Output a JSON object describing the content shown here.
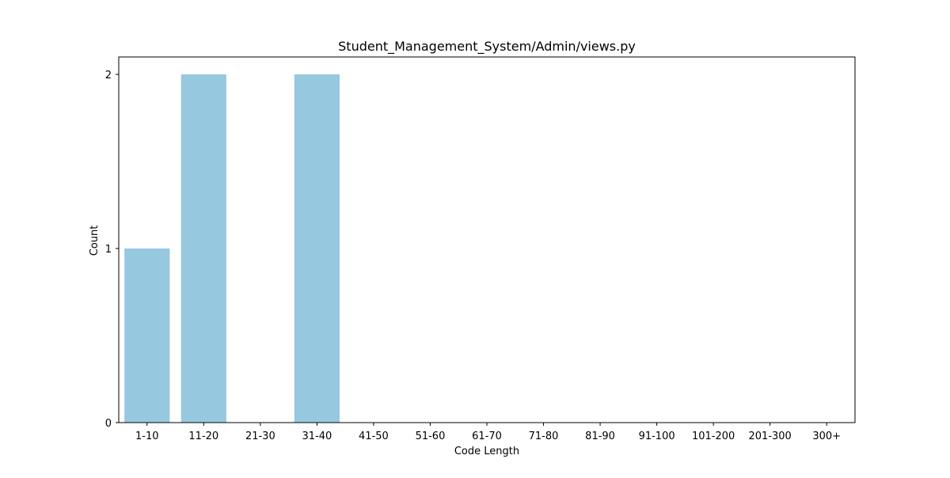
{
  "chart_data": {
    "type": "bar",
    "title": "Student_Management_System/Admin/views.py",
    "xlabel": "Code Length",
    "ylabel": "Count",
    "categories": [
      "1-10",
      "11-20",
      "21-30",
      "31-40",
      "41-50",
      "51-60",
      "61-70",
      "71-80",
      "81-90",
      "91-100",
      "101-200",
      "201-300",
      "300+"
    ],
    "values": [
      1,
      2,
      0,
      2,
      0,
      0,
      0,
      0,
      0,
      0,
      0,
      0,
      0
    ],
    "ylim": [
      0,
      2.1
    ],
    "yticks": [
      0,
      1,
      2
    ],
    "bar_color": "#96c9df",
    "grid": false,
    "legend": "none"
  }
}
